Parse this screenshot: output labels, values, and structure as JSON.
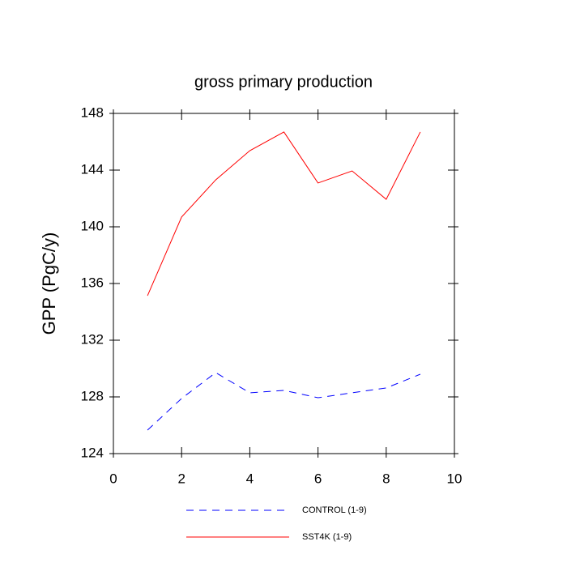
{
  "chart_data": {
    "type": "line",
    "title": "gross primary production",
    "y_label": "GPP  (PgC/y)",
    "x": [
      1,
      2,
      3,
      4,
      5,
      6,
      7,
      8,
      9
    ],
    "series": [
      {
        "name": "CONTROL (1-9)",
        "color": "#0000ff",
        "line_style": "dashed",
        "values": [
          125.66,
          127.89,
          129.71,
          128.29,
          128.46,
          127.94,
          128.29,
          128.63,
          129.6
        ]
      },
      {
        "name": "SST4K (1-9)",
        "color": "#ff0000",
        "line_style": "solid",
        "values": [
          135.14,
          140.69,
          143.31,
          145.37,
          146.69,
          143.09,
          143.94,
          141.94,
          146.69
        ]
      }
    ],
    "xlim": [
      0,
      10
    ],
    "xticks": [
      0,
      2,
      4,
      6,
      8,
      10
    ],
    "ylim": [
      124,
      148
    ],
    "yticks": [
      124,
      128,
      132,
      136,
      140,
      144,
      148
    ]
  }
}
